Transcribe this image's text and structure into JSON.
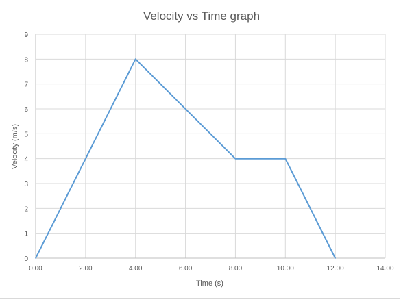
{
  "chart_data": {
    "type": "line",
    "title": "Velocity vs Time graph",
    "xlabel": "Time (s)",
    "ylabel": "Velocity (m/s)",
    "xlim": [
      0,
      14
    ],
    "ylim": [
      0,
      9
    ],
    "x_ticks": [
      "0.00",
      "2.00",
      "4.00",
      "6.00",
      "8.00",
      "10.00",
      "12.00",
      "14.00"
    ],
    "y_ticks": [
      "0",
      "1",
      "2",
      "3",
      "4",
      "5",
      "6",
      "7",
      "8",
      "9"
    ],
    "grid": true,
    "legend": "none",
    "series": [
      {
        "color": "#5b9bd5",
        "x": [
          0,
          4,
          8,
          10,
          12
        ],
        "y": [
          0,
          8,
          4,
          4,
          0
        ]
      }
    ]
  }
}
